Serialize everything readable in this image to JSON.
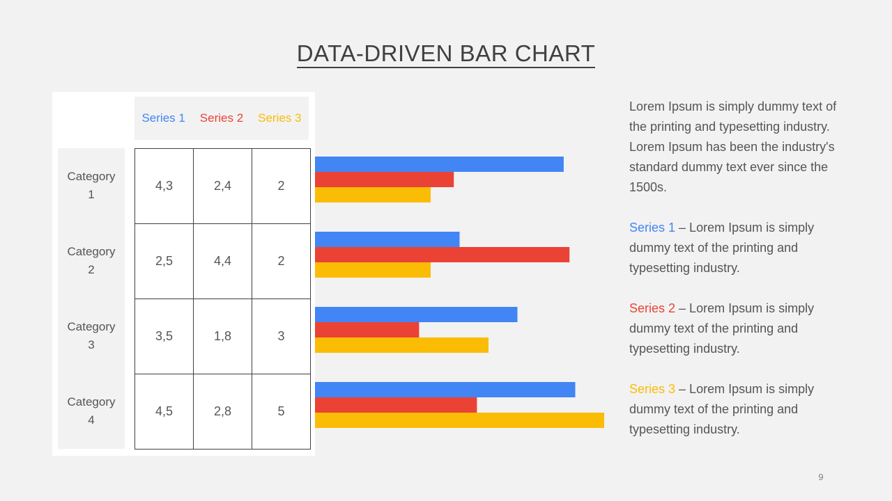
{
  "slide": {
    "title": "DATA-DRIVEN BAR CHART",
    "page_number": "9"
  },
  "colors": {
    "series1": "#4285f4",
    "series2": "#ea4335",
    "series3": "#fbbc05"
  },
  "table": {
    "series_headers": [
      "Series 1",
      "Series 2",
      "Series 3"
    ],
    "categories": [
      "Category 1",
      "Category 2",
      "Category 3",
      "Category 4"
    ],
    "cells": [
      [
        "4,3",
        "2,4",
        "2"
      ],
      [
        "2,5",
        "4,4",
        "2"
      ],
      [
        "3,5",
        "1,8",
        "3"
      ],
      [
        "4,5",
        "2,8",
        "5"
      ]
    ]
  },
  "chart_data": {
    "type": "bar",
    "orientation": "horizontal",
    "categories": [
      "Category 1",
      "Category 2",
      "Category 3",
      "Category 4"
    ],
    "series": [
      {
        "name": "Series 1",
        "values": [
          4.3,
          2.5,
          3.5,
          4.5
        ]
      },
      {
        "name": "Series 2",
        "values": [
          2.4,
          4.4,
          1.8,
          2.8
        ]
      },
      {
        "name": "Series 3",
        "values": [
          2,
          2,
          3,
          5
        ]
      }
    ],
    "xlim": [
      0,
      5
    ],
    "grid": false
  },
  "description": {
    "intro": "Lorem Ipsum is simply dummy text of the printing and typesetting industry. Lorem Ipsum has been the industry's standard dummy text ever since the 1500s.",
    "items": [
      {
        "label": "Series 1",
        "text": " – Lorem Ipsum is simply dummy text of the printing and typesetting industry."
      },
      {
        "label": "Series 2",
        "text": " – Lorem Ipsum is simply dummy text of the printing and typesetting industry."
      },
      {
        "label": "Series 3",
        "text": " – Lorem Ipsum is simply dummy text of the printing and typesetting industry."
      }
    ]
  }
}
